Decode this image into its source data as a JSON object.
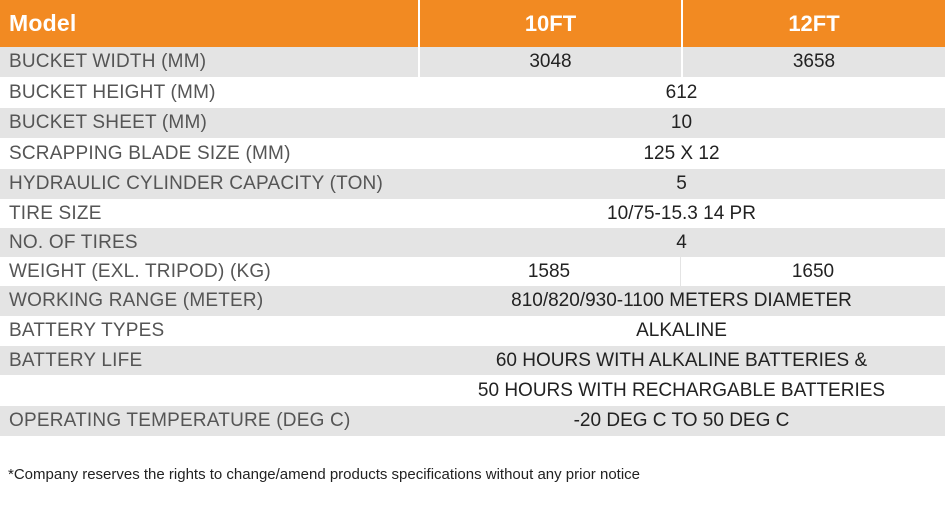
{
  "header": {
    "model_label": "Model",
    "col_a": "10FT",
    "col_b": "12FT"
  },
  "rows": [
    {
      "label": "BUCKET WIDTH (MM)",
      "a": "3048",
      "b": "3658"
    },
    {
      "label": "BUCKET HEIGHT (MM)",
      "value": "612"
    },
    {
      "label": "BUCKET SHEET (MM)",
      "value": "10"
    },
    {
      "label": "SCRAPPING BLADE SIZE (MM)",
      "value": "125 X 12"
    },
    {
      "label": "HYDRAULIC CYLINDER CAPACITY (TON)",
      "value": "5"
    },
    {
      "label": "TIRE SIZE",
      "value": "10/75-15.3 14 PR"
    },
    {
      "label": "NO. OF TIRES",
      "value": "4"
    },
    {
      "label": "WEIGHT (EXL. TRIPOD) (KG)",
      "a": "1585",
      "b": "1650"
    },
    {
      "label": "WORKING RANGE (METER)",
      "value": "810/820/930-1100 METERS DIAMETER"
    },
    {
      "label": "BATTERY TYPES",
      "value": "ALKALINE"
    },
    {
      "label": "BATTERY LIFE",
      "value": "60 HOURS WITH ALKALINE BATTERIES &"
    },
    {
      "label": "",
      "value": "50 HOURS WITH RECHARGABLE BATTERIES"
    },
    {
      "label": "OPERATING TEMPERATURE (DEG C)",
      "value": "-20 DEG C TO 50 DEG C"
    }
  ],
  "footnote": "*Company reserves the rights to change/amend products specifications without any prior notice",
  "colors": {
    "header_bg": "#f28a22",
    "row_grey": "#e4e4e4",
    "row_white": "#ffffff"
  }
}
